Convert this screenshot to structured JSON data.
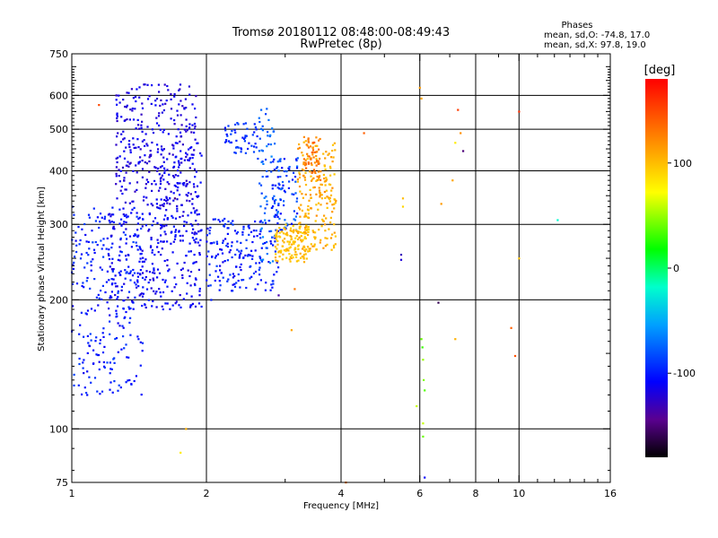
{
  "chart_data": {
    "type": "scatter",
    "title": "Tromsø 20180112 08:48:00-08:49:43",
    "subtitle": "RwPretec (8p)",
    "stats": {
      "heading": "Phases",
      "line1": "mean, sd,O: -74.8, 17.0",
      "line2": "mean, sd,X:  97.8, 19.0"
    },
    "xlabel": "Frequency [MHz]",
    "ylabel": "Stationary phase Virtual Height [km]",
    "x_scale": "log",
    "y_scale": "log",
    "xlim": [
      1,
      16
    ],
    "ylim": [
      75,
      750
    ],
    "x_ticks": [
      1,
      2,
      4,
      6,
      8,
      10,
      16
    ],
    "y_ticks": [
      75,
      100,
      200,
      300,
      400,
      500,
      600,
      750
    ],
    "x_minor_ticks": [
      3,
      5,
      7,
      9,
      11,
      12,
      13,
      14,
      15
    ],
    "grid": true,
    "colorbar": {
      "label": "[deg]",
      "range": [
        -180,
        180
      ],
      "ticks": [
        100,
        0,
        -100
      ],
      "colormap": "rainbow"
    },
    "series": [
      {
        "clusters": [
          {
            "fmin": 1.0,
            "fmax": 1.45,
            "hmin": 120,
            "hmax": 330,
            "phase": -100,
            "spread": 15,
            "n": 260
          },
          {
            "fmin": 1.2,
            "fmax": 1.95,
            "hmin": 190,
            "hmax": 320,
            "phase": -110,
            "spread": 12,
            "n": 260
          },
          {
            "fmin": 1.25,
            "fmax": 1.9,
            "hmin": 330,
            "hmax": 640,
            "phase": -118,
            "spread": 10,
            "n": 300
          },
          {
            "fmin": 1.55,
            "fmax": 1.95,
            "hmin": 270,
            "hmax": 470,
            "phase": -112,
            "spread": 10,
            "n": 110
          },
          {
            "fmin": 2.0,
            "fmax": 2.9,
            "hmin": 210,
            "hmax": 310,
            "phase": -100,
            "spread": 15,
            "n": 180
          },
          {
            "fmin": 2.2,
            "fmax": 2.6,
            "hmin": 440,
            "hmax": 520,
            "phase": -95,
            "spread": 10,
            "n": 50
          },
          {
            "fmin": 2.6,
            "fmax": 2.85,
            "hmin": 240,
            "hmax": 560,
            "phase": -75,
            "spread": 15,
            "n": 70
          },
          {
            "fmin": 2.8,
            "fmax": 3.2,
            "hmin": 290,
            "hmax": 430,
            "phase": -90,
            "spread": 22,
            "n": 90
          },
          {
            "fmin": 2.85,
            "fmax": 3.4,
            "hmin": 245,
            "hmax": 300,
            "phase": 100,
            "spread": 10,
            "n": 140
          },
          {
            "fmin": 3.2,
            "fmax": 3.9,
            "hmin": 260,
            "hmax": 470,
            "phase": 108,
            "spread": 14,
            "n": 200
          },
          {
            "fmin": 3.3,
            "fmax": 3.6,
            "hmin": 380,
            "hmax": 480,
            "phase": 130,
            "spread": 12,
            "n": 50
          }
        ],
        "points": [
          {
            "x": 6.0,
            "y": 625,
            "phase": 115
          },
          {
            "x": 6.05,
            "y": 590,
            "phase": 110
          },
          {
            "x": 7.3,
            "y": 555,
            "phase": 155
          },
          {
            "x": 10.0,
            "y": 550,
            "phase": 160
          },
          {
            "x": 4.5,
            "y": 490,
            "phase": 140
          },
          {
            "x": 7.4,
            "y": 490,
            "phase": 120
          },
          {
            "x": 7.2,
            "y": 465,
            "phase": 80
          },
          {
            "x": 7.5,
            "y": 445,
            "phase": -150
          },
          {
            "x": 7.1,
            "y": 380,
            "phase": 110
          },
          {
            "x": 6.7,
            "y": 335,
            "phase": 115
          },
          {
            "x": 5.5,
            "y": 345,
            "phase": 100
          },
          {
            "x": 5.5,
            "y": 330,
            "phase": 90
          },
          {
            "x": 12.2,
            "y": 307,
            "phase": -20
          },
          {
            "x": 5.45,
            "y": 255,
            "phase": -130
          },
          {
            "x": 5.45,
            "y": 248,
            "phase": -120
          },
          {
            "x": 10.0,
            "y": 250,
            "phase": 100
          },
          {
            "x": 6.6,
            "y": 197,
            "phase": -160
          },
          {
            "x": 9.6,
            "y": 172,
            "phase": 140
          },
          {
            "x": 7.2,
            "y": 162,
            "phase": 105
          },
          {
            "x": 9.8,
            "y": 148,
            "phase": 145
          },
          {
            "x": 6.05,
            "y": 162,
            "phase": 40
          },
          {
            "x": 6.08,
            "y": 155,
            "phase": 30
          },
          {
            "x": 6.1,
            "y": 145,
            "phase": 50
          },
          {
            "x": 6.12,
            "y": 130,
            "phase": 45
          },
          {
            "x": 6.15,
            "y": 123,
            "phase": 35
          },
          {
            "x": 5.9,
            "y": 113,
            "phase": 60
          },
          {
            "x": 6.1,
            "y": 103,
            "phase": 60
          },
          {
            "x": 6.1,
            "y": 96,
            "phase": 40
          },
          {
            "x": 6.15,
            "y": 77,
            "phase": -110
          },
          {
            "x": 4.1,
            "y": 75,
            "phase": 130
          },
          {
            "x": 1.8,
            "y": 100,
            "phase": 105
          },
          {
            "x": 1.75,
            "y": 88,
            "phase": 80
          },
          {
            "x": 3.1,
            "y": 170,
            "phase": 110
          },
          {
            "x": 3.15,
            "y": 212,
            "phase": 130
          },
          {
            "x": 1.15,
            "y": 570,
            "phase": 150
          },
          {
            "x": 2.9,
            "y": 205,
            "phase": -135
          },
          {
            "x": 2.05,
            "y": 200,
            "phase": -100
          },
          {
            "x": 1.7,
            "y": 345,
            "phase": -150
          }
        ]
      }
    ]
  }
}
